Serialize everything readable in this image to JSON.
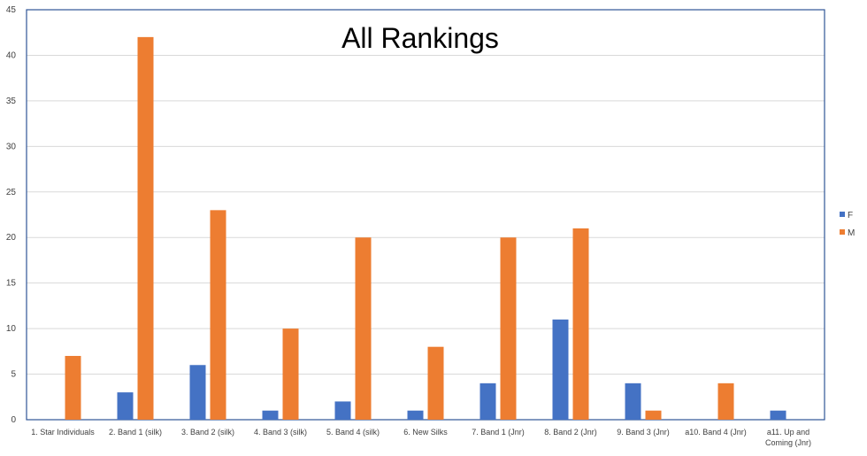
{
  "chart_data": {
    "type": "bar",
    "title": "All Rankings",
    "xlabel": "",
    "ylabel": "",
    "ylim": [
      0,
      45
    ],
    "yticks": [
      0,
      5,
      10,
      15,
      20,
      25,
      30,
      35,
      40,
      45
    ],
    "grid": true,
    "legend_position": "right",
    "categories": [
      [
        "1. Star Individuals"
      ],
      [
        "2. Band 1 (silk)"
      ],
      [
        "3. Band 2 (silk)"
      ],
      [
        "4. Band 3 (silk)"
      ],
      [
        "5. Band 4 (silk)"
      ],
      [
        "6. New Silks"
      ],
      [
        "7. Band 1 (Jnr)"
      ],
      [
        "8. Band 2 (Jnr)"
      ],
      [
        "9. Band 3 (Jnr)"
      ],
      [
        "a10. Band 4 (Jnr)"
      ],
      [
        "a11. Up and",
        "Coming (Jnr)"
      ]
    ],
    "series": [
      {
        "name": "F",
        "color": "#4472c4",
        "values": [
          null,
          3,
          6,
          1,
          2,
          1,
          4,
          11,
          4,
          null,
          1
        ]
      },
      {
        "name": "M",
        "color": "#ed7d31",
        "values": [
          7,
          42,
          23,
          10,
          20,
          8,
          20,
          21,
          1,
          4,
          null
        ]
      }
    ],
    "colors": {
      "grid": "#d9d9d9",
      "frame": "#2f5597",
      "text": "#404040",
      "title": "#000000"
    }
  }
}
